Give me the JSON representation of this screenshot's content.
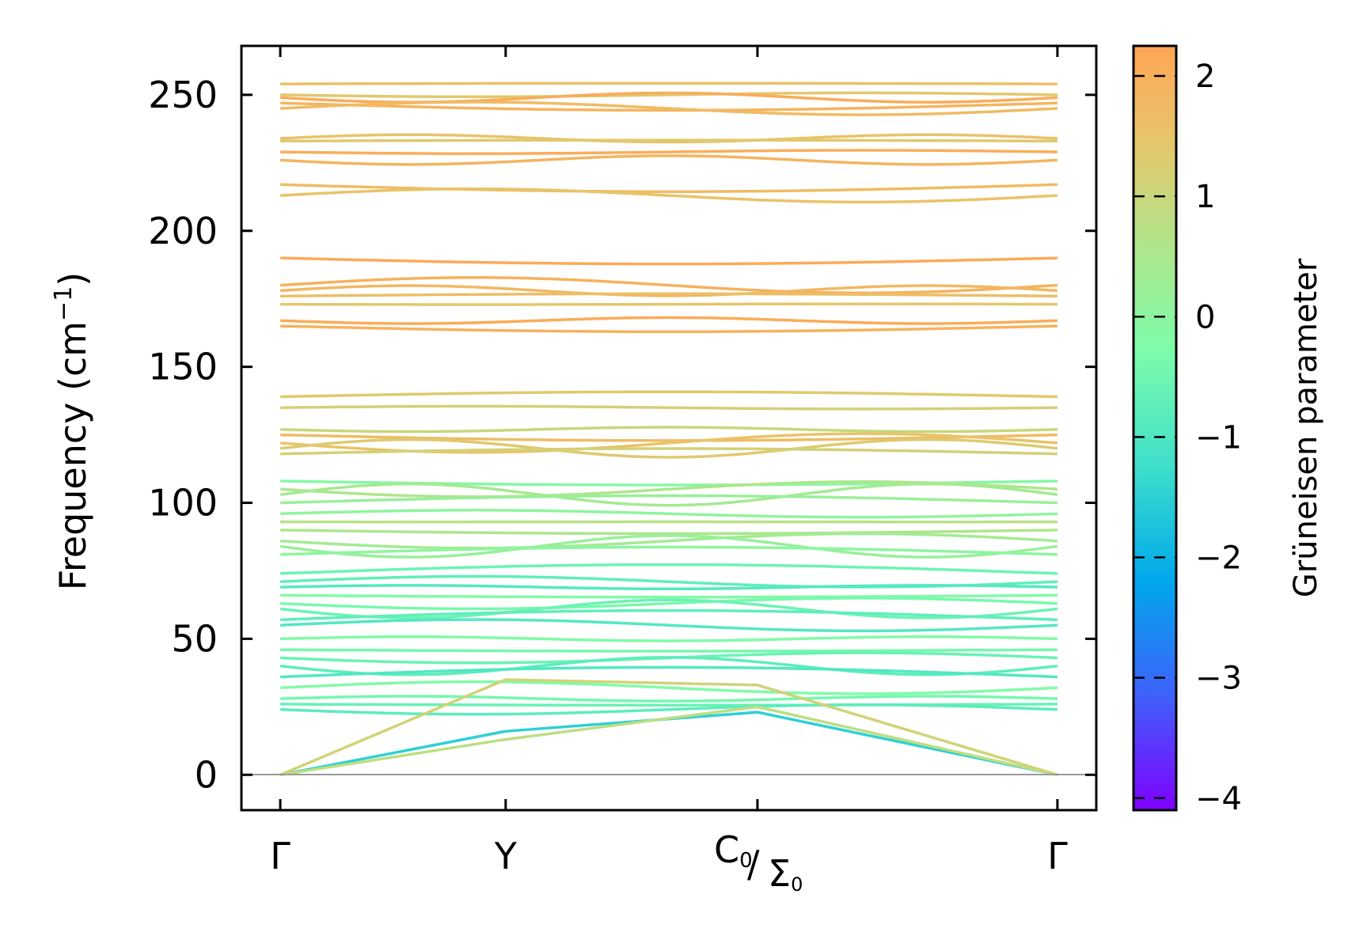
{
  "chart_data": {
    "type": "line",
    "subtype": "phonon band structure colored by Grüneisen parameter",
    "ylabel": "Frequency (cm",
    "ylabel_sup": "−1",
    "ylabel_close": ")",
    "ylim": [
      -13,
      268
    ],
    "yticks": [
      0,
      50,
      100,
      150,
      200,
      250
    ],
    "ytick_labels": [
      "0",
      "50",
      "100",
      "150",
      "200",
      "250"
    ],
    "kpath": [
      {
        "label": "Γ",
        "pos": 0.0
      },
      {
        "label": "Y",
        "pos": 0.29
      },
      {
        "label_main": "C",
        "label_main_sub": "0",
        "label_second": "Σ",
        "label_second_sub": "0",
        "slash": "/",
        "pos": 0.614
      },
      {
        "label": "Γ",
        "pos": 1.0
      }
    ],
    "xlim": [
      -0.05,
      1.05
    ],
    "colorbar": {
      "title": "Grüneisen parameter",
      "range": [
        -4.1,
        2.25
      ],
      "ticks": [
        2,
        1,
        0,
        -1,
        -2,
        -3,
        -4
      ],
      "tick_labels": [
        "2",
        "1",
        "0",
        "−1",
        "−2",
        "−3",
        "−4"
      ],
      "colormap": "rainbow"
    },
    "band_groups": [
      {
        "name": "optical-high",
        "freqs": [
          254,
          250,
          249,
          247,
          245,
          234,
          233,
          229,
          226,
          217,
          213
        ],
        "gamma": 1.7
      },
      {
        "name": "optical-upper-mid",
        "freqs": [
          190,
          180,
          178,
          176,
          173,
          167,
          165
        ],
        "gamma": 1.8
      },
      {
        "name": "optical-mid",
        "freqs": [
          139,
          135,
          127,
          125,
          122,
          120,
          118
        ],
        "gamma": 1.4
      },
      {
        "name": "optical-low-mid",
        "freqs": [
          108,
          105,
          103,
          100,
          96,
          93,
          90,
          86,
          84,
          81
        ],
        "gamma": 0.3
      },
      {
        "name": "optical-low",
        "freqs": [
          74,
          71,
          69,
          66,
          63,
          61,
          57,
          55,
          50,
          46,
          43,
          40,
          36,
          32,
          28,
          26,
          24
        ],
        "gamma": -0.6
      }
    ],
    "acoustic": [
      {
        "name": "acoustic-1",
        "points": [
          [
            0,
            0
          ],
          [
            0.29,
            16
          ],
          [
            0.614,
            23
          ],
          [
            1.0,
            0
          ]
        ],
        "gamma": -1.5
      },
      {
        "name": "acoustic-2",
        "points": [
          [
            0,
            0
          ],
          [
            0.29,
            13
          ],
          [
            0.614,
            25
          ],
          [
            1.0,
            0
          ]
        ],
        "gamma": 0.8
      },
      {
        "name": "acoustic-3",
        "points": [
          [
            0,
            0
          ],
          [
            0.29,
            35
          ],
          [
            0.614,
            33
          ],
          [
            1.0,
            0
          ]
        ],
        "gamma": 1.1
      }
    ]
  }
}
